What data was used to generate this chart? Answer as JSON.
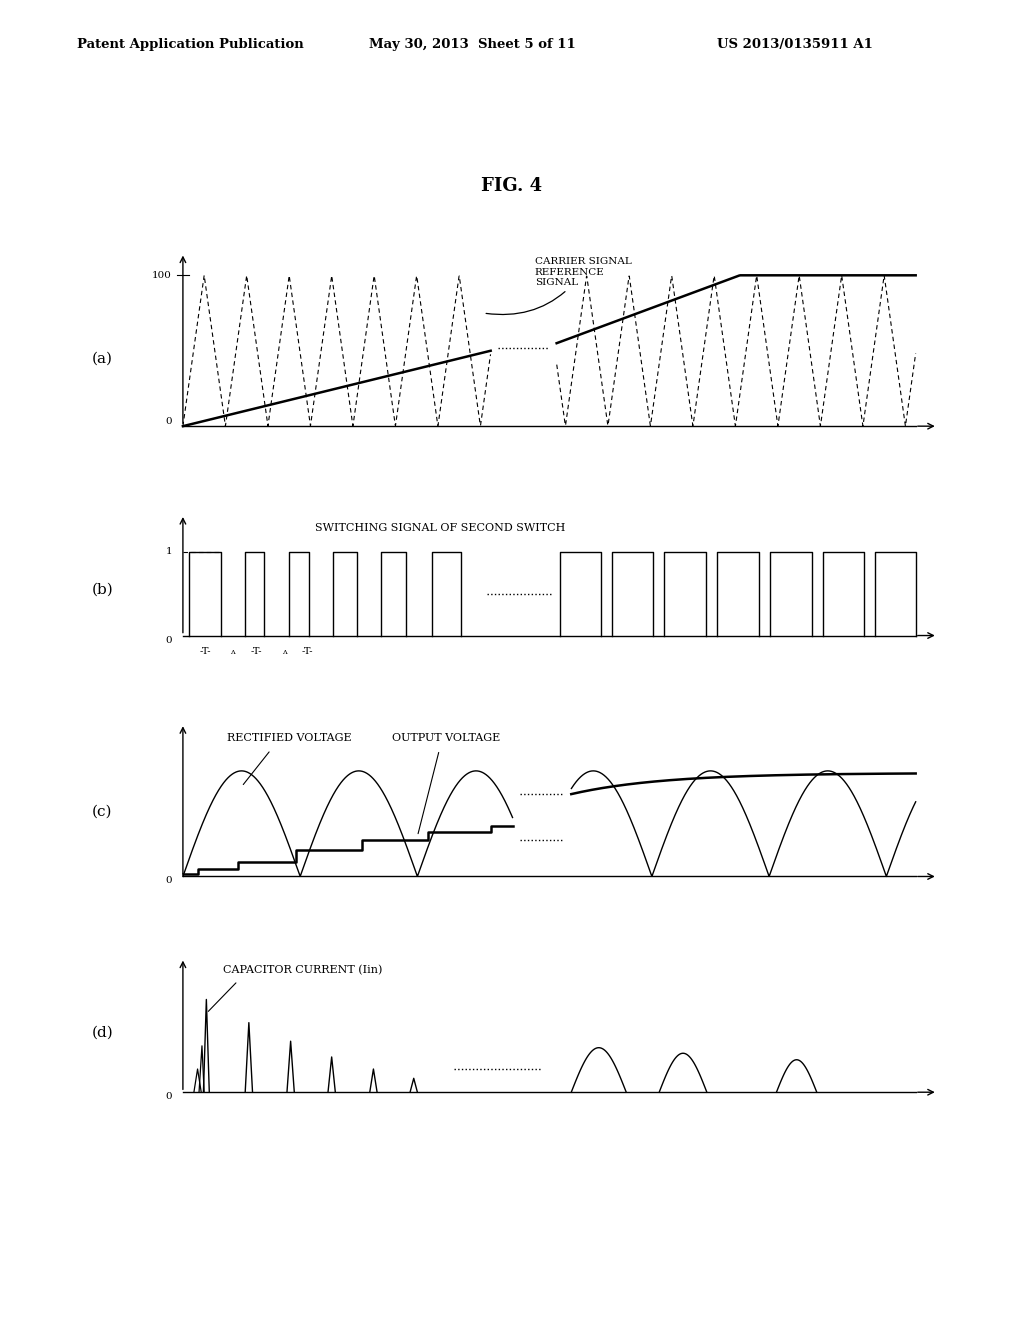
{
  "fig_title": "FIG. 4",
  "header_left": "Patent Application Publication",
  "header_center": "May 30, 2013  Sheet 5 of 11",
  "header_right": "US 2013/0135911 A1",
  "background_color": "#ffffff",
  "text_color": "#000000"
}
